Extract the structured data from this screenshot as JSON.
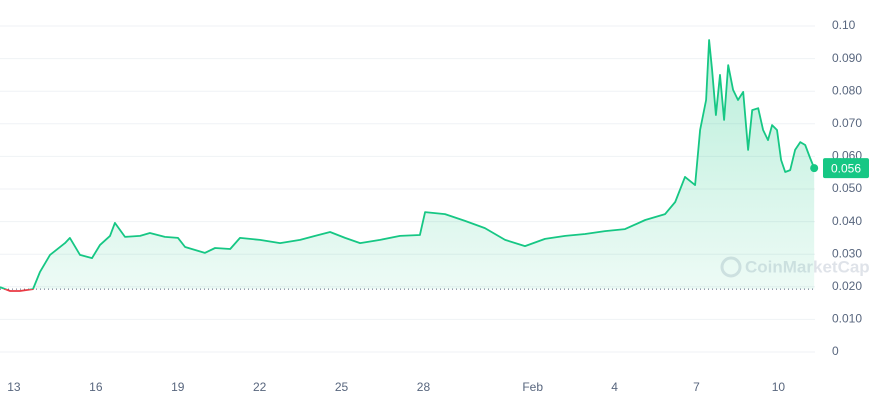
{
  "chart_data": {
    "type": "line",
    "x": [
      12.49,
      12.86,
      13.22,
      13.7,
      13.95,
      14.32,
      14.87,
      15.05,
      15.42,
      15.86,
      16.15,
      16.52,
      16.7,
      17.07,
      17.62,
      17.98,
      18.53,
      19.01,
      19.27,
      19.99,
      20.37,
      20.92,
      21.28,
      22.01,
      22.75,
      23.48,
      24.03,
      24.58,
      25.13,
      25.68,
      26.41,
      27.14,
      27.87,
      28.06,
      28.79,
      29.52,
      30.25,
      30.99,
      31.72,
      32.45,
      33.19,
      33.92,
      34.65,
      35.38,
      36.12,
      36.85,
      37.22,
      37.58,
      37.95,
      38.13,
      38.35,
      38.46,
      38.57,
      38.71,
      38.86,
      39.01,
      39.16,
      39.34,
      39.52,
      39.71,
      39.89,
      40.04,
      40.26,
      40.44,
      40.62,
      40.77,
      40.95,
      41.1,
      41.25,
      41.43,
      41.61,
      41.8,
      41.98,
      42.16,
      42.31
    ],
    "series": [
      {
        "color": "#16c784",
        "down_color": "#ea3943",
        "values": [
          0.0199,
          0.0187,
          0.0187,
          0.0193,
          0.0245,
          0.0298,
          0.0334,
          0.035,
          0.0298,
          0.0288,
          0.0328,
          0.0356,
          0.0396,
          0.0353,
          0.0356,
          0.0365,
          0.0353,
          0.035,
          0.0322,
          0.0304,
          0.0319,
          0.0316,
          0.035,
          0.0344,
          0.0334,
          0.0344,
          0.0356,
          0.0368,
          0.035,
          0.0334,
          0.0344,
          0.0356,
          0.0359,
          0.0429,
          0.0423,
          0.0402,
          0.038,
          0.0344,
          0.0325,
          0.0347,
          0.0356,
          0.0362,
          0.0371,
          0.0377,
          0.0405,
          0.0423,
          0.046,
          0.0537,
          0.0512,
          0.0681,
          0.0773,
          0.0957,
          0.0865,
          0.0727,
          0.085,
          0.0712,
          0.088,
          0.0804,
          0.0773,
          0.0798,
          0.062,
          0.0742,
          0.0748,
          0.0681,
          0.065,
          0.0696,
          0.0681,
          0.0589,
          0.0552,
          0.0558,
          0.062,
          0.0644,
          0.0635,
          0.0595,
          0.0564
        ]
      }
    ],
    "baseline": 0.0193,
    "price_tag": "0.056",
    "watermark": "CoinMarketCap",
    "xlim": [
      12.49,
      42.34
    ],
    "xticks": [
      13,
      16,
      19,
      22,
      25,
      28,
      {
        "value": 32,
        "label": "Feb"
      },
      {
        "value": 35,
        "label": "4"
      },
      {
        "value": 38,
        "label": "7"
      },
      {
        "value": 41,
        "label": "10"
      }
    ],
    "ylim": [
      0,
      0.1
    ],
    "yticks": [
      0,
      {
        "value": 0.01,
        "label": "0.010"
      },
      {
        "value": 0.02,
        "label": "0.020"
      },
      {
        "value": 0.03,
        "label": "0.030"
      },
      {
        "value": 0.04,
        "label": "0.040"
      },
      {
        "value": 0.05,
        "label": "0.050"
      },
      {
        "value": 0.06,
        "label": "0.060"
      },
      {
        "value": 0.07,
        "label": "0.070"
      },
      {
        "value": 0.08,
        "label": "0.080"
      },
      {
        "value": 0.09,
        "label": "0.090"
      },
      {
        "value": 0.1,
        "label": "0.10"
      }
    ],
    "grid": true
  }
}
